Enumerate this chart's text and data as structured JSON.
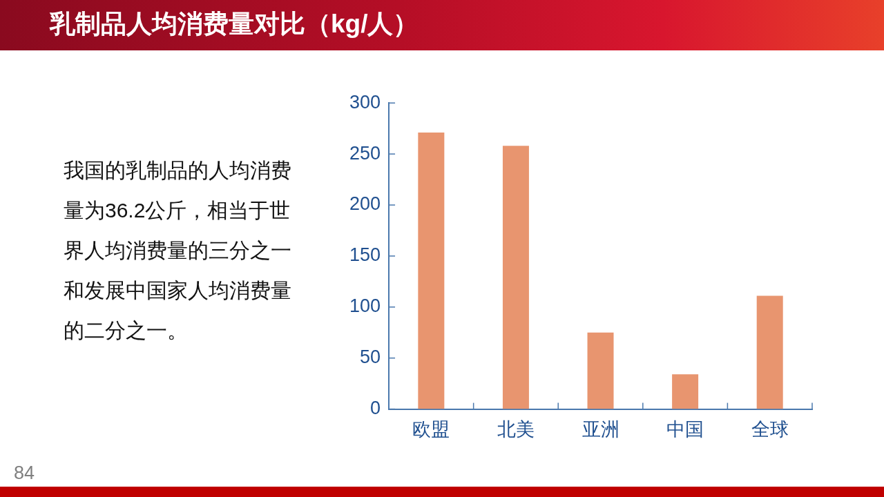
{
  "chart_data": {
    "type": "bar",
    "title": "乳制品人均消费量对比（kg/人）",
    "categories": [
      "欧盟",
      "北美",
      "亚洲",
      "中国",
      "全球"
    ],
    "values": [
      271,
      258,
      75,
      34,
      111
    ],
    "color": "#e8956f",
    "ylim": [
      0,
      300
    ],
    "yticks": [
      0,
      50,
      100,
      150,
      200,
      250,
      300
    ],
    "annotations": [
      "我国的乳制品的人均消费量为36.2公斤，相当于世界人均消费量的三分之一和发展中国家人均消费量的二分之一。",
      "84"
    ]
  }
}
